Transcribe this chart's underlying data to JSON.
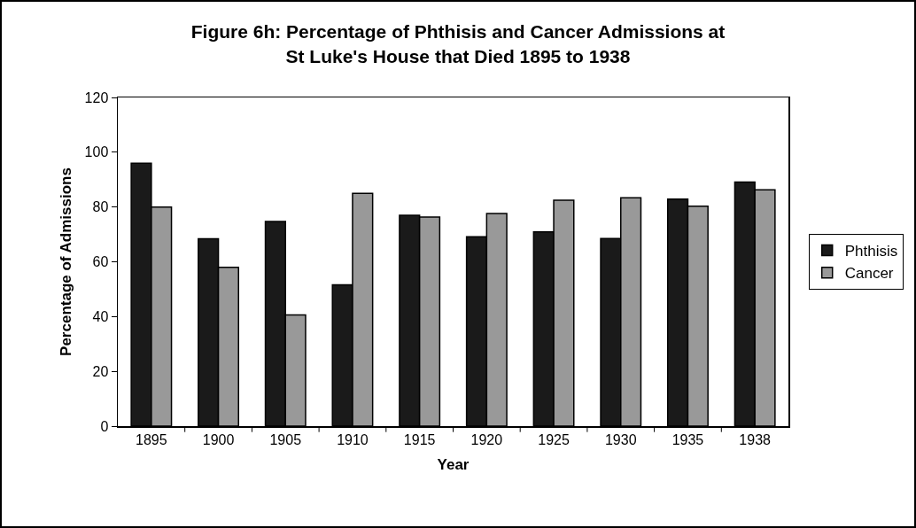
{
  "chart_data": {
    "type": "bar",
    "title": "Figure 6h: Percentage of Phthisis and Cancer Admissions at St Luke's House that Died 1895 to 1938",
    "xlabel": "Year",
    "ylabel": "Percentage of Admissions",
    "categories": [
      "1895",
      "1900",
      "1905",
      "1910",
      "1915",
      "1920",
      "1925",
      "1930",
      "1935",
      "1938"
    ],
    "series": [
      {
        "name": "Phthisis",
        "color": "#1a1a1a",
        "values": [
          96,
          68.4,
          74.7,
          51.6,
          77,
          69.1,
          70.9,
          68.5,
          82.9,
          89.1
        ]
      },
      {
        "name": "Cancer",
        "color": "#999999",
        "values": [
          80,
          58,
          40.6,
          85,
          76.3,
          77.6,
          82.5,
          83.4,
          80.3,
          86.3
        ]
      }
    ],
    "ylim": [
      0,
      120
    ],
    "yticks": [
      0,
      20,
      40,
      60,
      80,
      100,
      120
    ],
    "legend": "right"
  }
}
